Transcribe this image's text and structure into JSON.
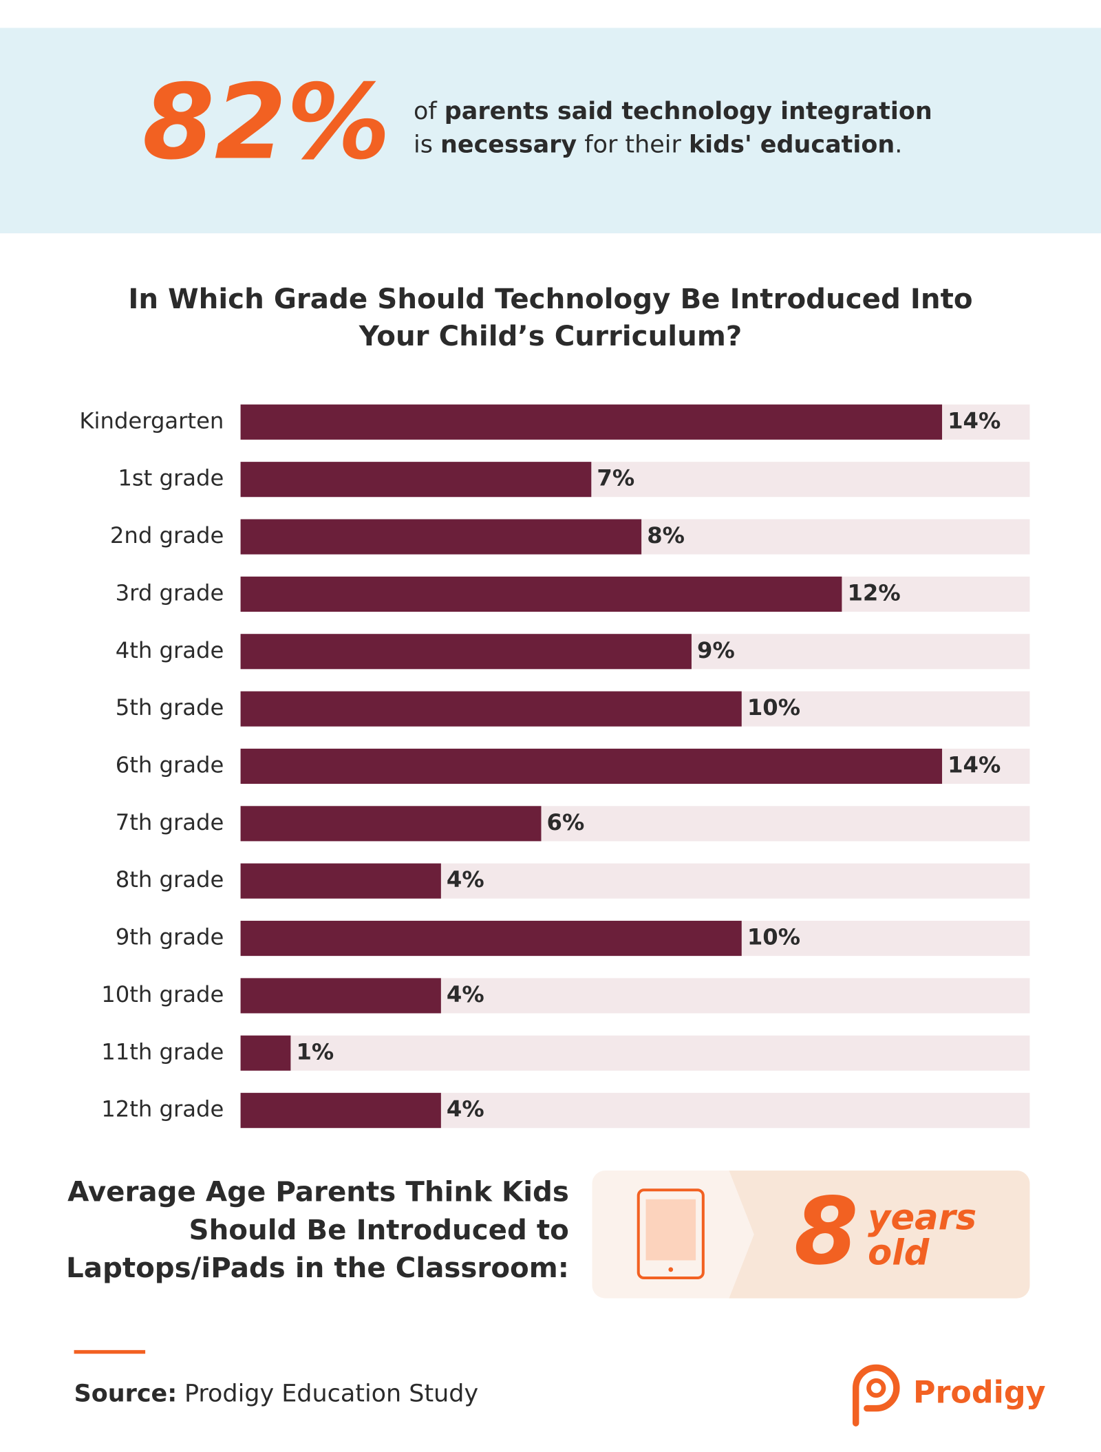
{
  "banner": {
    "stat": "82%",
    "text_lines": [
      [
        {
          "text": "of ",
          "bold": false
        },
        {
          "text": "parents said technology integration",
          "bold": true
        }
      ],
      [
        {
          "text": "is ",
          "bold": false
        },
        {
          "text": "necessary",
          "bold": true
        },
        {
          "text": " for their ",
          "bold": false
        },
        {
          "text": "kids' education",
          "bold": true
        },
        {
          "text": ".",
          "bold": false
        }
      ]
    ]
  },
  "chart_data": {
    "type": "bar",
    "orientation": "horizontal",
    "title_lines": [
      "In Which Grade Should Technology Be Introduced Into",
      "Your Child’s Curriculum?"
    ],
    "categories": [
      "Kindergarten",
      "1st grade",
      "2nd grade",
      "3rd grade",
      "4th grade",
      "5th grade",
      "6th grade",
      "7th grade",
      "8th grade",
      "9th grade",
      "10th grade",
      "11th grade",
      "12th grade"
    ],
    "values": [
      14,
      7,
      8,
      12,
      9,
      10,
      14,
      6,
      4,
      10,
      4,
      1,
      4
    ],
    "value_labels": [
      "14%",
      "7%",
      "8%",
      "12%",
      "9%",
      "10%",
      "14%",
      "6%",
      "4%",
      "10%",
      "4%",
      "1%",
      "4%"
    ],
    "xlim": [
      0,
      15.75
    ],
    "color": "#6b1f3a",
    "track_color": "#f3e8ea"
  },
  "average_age": {
    "heading_lines": [
      "Average Age Parents Think Kids",
      "Should Be Introduced to",
      "Laptops/iPads in the Classroom:"
    ],
    "number": "8",
    "unit_lines": [
      "years",
      "old"
    ]
  },
  "footer": {
    "source_label": "Source:",
    "source": "Prodigy Education Study",
    "brand": "Prodigy"
  }
}
